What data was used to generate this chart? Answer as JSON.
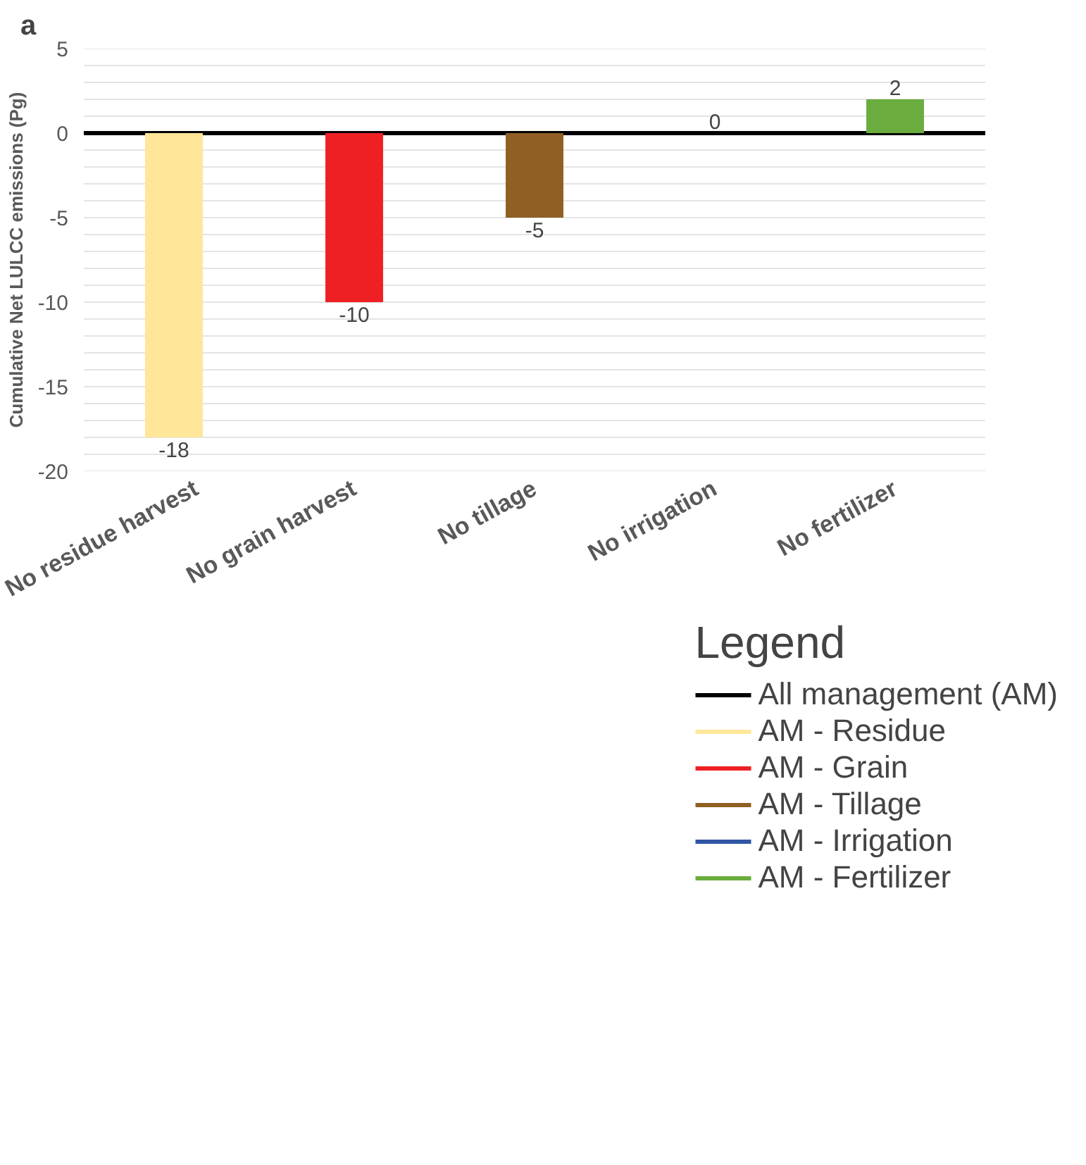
{
  "chart_data": {
    "type": "bar",
    "ylabel": "Cumulative Net LULCC emissions (Pg)",
    "legend_title": "Legend",
    "annotations": [
      "a"
    ],
    "categories": [
      "No residue harvest",
      "No grain harvest",
      "No tillage",
      "No irrigation",
      "No fertilizer"
    ],
    "series": [
      {
        "name": "AM - Residue",
        "color": "#ffe699",
        "values": [
          -18,
          null,
          null,
          null,
          null
        ]
      },
      {
        "name": "AM - Grain",
        "color": "#ee2024",
        "values": [
          null,
          -10,
          null,
          null,
          null
        ]
      },
      {
        "name": "AM - Tillage",
        "color": "#8f5f24",
        "values": [
          null,
          null,
          -5,
          null,
          null
        ]
      },
      {
        "name": "AM - Irrigation",
        "color": "#2f55a4",
        "values": [
          null,
          null,
          null,
          0,
          null
        ]
      },
      {
        "name": "AM - Fertilizer",
        "color": "#6aad3e",
        "values": [
          null,
          null,
          null,
          null,
          2
        ]
      }
    ],
    "ref_lines": [
      {
        "axis": "y",
        "value": 0,
        "label": "All management (AM)",
        "color": "#000000"
      }
    ],
    "ylim": [
      -20,
      5
    ],
    "yticks": [
      -20,
      {
        "value": -19,
        "label": null
      },
      {
        "value": -18,
        "label": null
      },
      {
        "value": -17,
        "label": null
      },
      {
        "value": -16,
        "label": null
      },
      -15,
      {
        "value": -14,
        "label": null
      },
      {
        "value": -13,
        "label": null
      },
      {
        "value": -12,
        "label": null
      },
      {
        "value": -11,
        "label": null
      },
      -10,
      {
        "value": -9,
        "label": null
      },
      {
        "value": -8,
        "label": null
      },
      {
        "value": -7,
        "label": null
      },
      {
        "value": -6,
        "label": null
      },
      -5,
      {
        "value": -4,
        "label": null
      },
      {
        "value": -3,
        "label": null
      },
      {
        "value": -2,
        "label": null
      },
      {
        "value": -1,
        "label": null
      },
      0,
      {
        "value": 1,
        "label": null
      },
      {
        "value": 2,
        "label": null
      },
      {
        "value": 3,
        "label": null
      },
      {
        "value": 4,
        "label": null
      },
      5
    ],
    "grid": "y",
    "data_labels": true,
    "legend": "bottom right"
  }
}
